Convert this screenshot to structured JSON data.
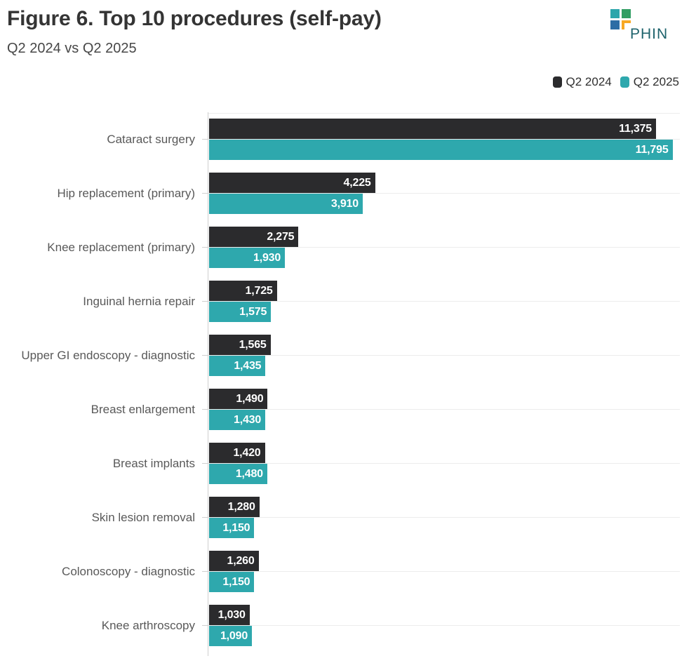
{
  "header": {
    "title": "Figure 6. Top 10 procedures (self-pay)",
    "subtitle": "Q2 2024 vs Q2 2025"
  },
  "logo": {
    "text": "PHIN",
    "text_color": "#1e636c",
    "square_colors": {
      "top_left": "#2ca6ab",
      "top_right": "#319e63",
      "bottom_left": "#2d6da5",
      "corner_bracket": "#f7a823"
    }
  },
  "legend": {
    "items": [
      {
        "label": "Q2 2024",
        "color": "#2b2b2d"
      },
      {
        "label": "Q2 2025",
        "color": "#2ea8ad"
      }
    ]
  },
  "chart_data": {
    "type": "bar",
    "orientation": "horizontal",
    "title": "Figure 6. Top 10 procedures (self-pay)",
    "subtitle": "Q2 2024 vs Q2 2025",
    "categories": [
      "Cataract surgery",
      "Hip replacement (primary)",
      "Knee replacement (primary)",
      "Inguinal hernia repair",
      "Upper GI endoscopy - diagnostic",
      "Breast enlargement",
      "Breast implants",
      "Skin lesion removal",
      "Colonoscopy - diagnostic",
      "Knee arthroscopy"
    ],
    "series": [
      {
        "name": "Q2 2024",
        "color": "#2b2b2d",
        "values": [
          11375,
          4225,
          2275,
          1725,
          1565,
          1490,
          1420,
          1280,
          1260,
          1030
        ]
      },
      {
        "name": "Q2 2025",
        "color": "#2ea8ad",
        "values": [
          11795,
          3910,
          1930,
          1575,
          1435,
          1430,
          1480,
          1150,
          1150,
          1090
        ]
      }
    ],
    "xlim": [
      0,
      12000
    ],
    "value_label_format": "thousands-comma",
    "grid": "horizontal lines at each category center",
    "legend_position": "top-right",
    "axis_color": "#cfcfcf",
    "gridline_color": "#ececec"
  }
}
